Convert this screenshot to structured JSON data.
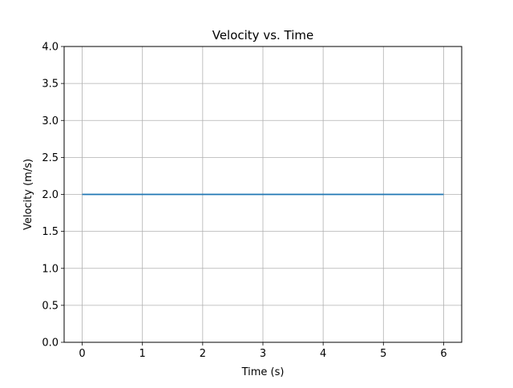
{
  "chart_data": {
    "type": "line",
    "title": "Velocity vs. Time",
    "xlabel": "Time (s)",
    "ylabel": "Velocity (m/s)",
    "xlim": [
      -0.3,
      6.3
    ],
    "ylim": [
      0,
      4
    ],
    "x_ticks": [
      0,
      1,
      2,
      3,
      4,
      5,
      6
    ],
    "x_tick_labels": [
      "0",
      "1",
      "2",
      "3",
      "4",
      "5",
      "6"
    ],
    "y_ticks": [
      0,
      0.5,
      1,
      1.5,
      2,
      2.5,
      3,
      3.5,
      4
    ],
    "y_tick_labels": [
      "0.0",
      "0.5",
      "1.0",
      "1.5",
      "2.0",
      "2.5",
      "3.0",
      "3.5",
      "4.0"
    ],
    "grid": true,
    "series": [
      {
        "x": [
          0,
          1,
          2,
          3,
          4,
          5,
          6
        ],
        "y": [
          2,
          2,
          2,
          2,
          2,
          2,
          2
        ],
        "color": "#1f77b4"
      }
    ]
  }
}
